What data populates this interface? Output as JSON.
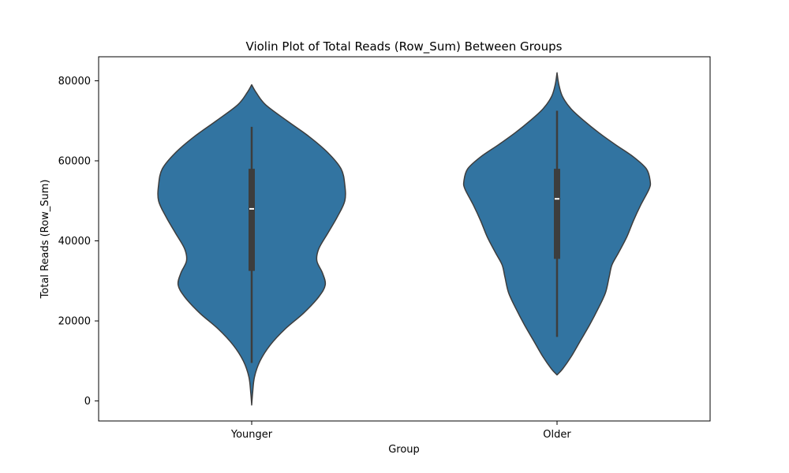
{
  "chart_data": {
    "type": "violin",
    "title": "Violin Plot of Total Reads (Row_Sum) Between Groups",
    "xlabel": "Group",
    "ylabel": "Total Reads (Row_Sum)",
    "categories": [
      "Younger",
      "Older"
    ],
    "ylim": [
      -5000,
      86000
    ],
    "yticks": [
      0,
      20000,
      40000,
      60000,
      80000
    ],
    "ytick_labels": [
      "0",
      "20000",
      "40000",
      "60000",
      "80000"
    ],
    "grid": false,
    "legend": "none",
    "colors": {
      "fill": "#3274a1",
      "edge": "#3d3d3d",
      "box": "#3d3d3d",
      "median": "#ffffff"
    },
    "violins": [
      {
        "category": "Younger",
        "box": {
          "whisker_low": 9500,
          "q1": 32500,
          "median": 48000,
          "q3": 58000,
          "whisker_high": 68500
        },
        "density": [
          [
            -1000,
            0.0
          ],
          [
            2000,
            0.01
          ],
          [
            6000,
            0.03
          ],
          [
            10000,
            0.09
          ],
          [
            14000,
            0.2
          ],
          [
            18000,
            0.36
          ],
          [
            22000,
            0.56
          ],
          [
            26000,
            0.72
          ],
          [
            29000,
            0.79
          ],
          [
            32000,
            0.76
          ],
          [
            35000,
            0.7
          ],
          [
            38000,
            0.72
          ],
          [
            42000,
            0.82
          ],
          [
            46000,
            0.92
          ],
          [
            50000,
            1.0
          ],
          [
            54000,
            1.0
          ],
          [
            58000,
            0.96
          ],
          [
            62000,
            0.82
          ],
          [
            66000,
            0.62
          ],
          [
            70000,
            0.38
          ],
          [
            74000,
            0.15
          ],
          [
            77000,
            0.05
          ],
          [
            79000,
            0.0
          ]
        ]
      },
      {
        "category": "Older",
        "box": {
          "whisker_low": 16000,
          "q1": 35500,
          "median": 50500,
          "q3": 58000,
          "whisker_high": 72500
        },
        "density": [
          [
            6500,
            0.0
          ],
          [
            8000,
            0.06
          ],
          [
            11000,
            0.15
          ],
          [
            15000,
            0.25
          ],
          [
            19000,
            0.35
          ],
          [
            23000,
            0.44
          ],
          [
            27000,
            0.52
          ],
          [
            31000,
            0.56
          ],
          [
            34000,
            0.59
          ],
          [
            37000,
            0.66
          ],
          [
            41000,
            0.75
          ],
          [
            45000,
            0.82
          ],
          [
            49000,
            0.9
          ],
          [
            53000,
            0.99
          ],
          [
            55000,
            1.0
          ],
          [
            58000,
            0.96
          ],
          [
            61000,
            0.82
          ],
          [
            64000,
            0.63
          ],
          [
            67000,
            0.45
          ],
          [
            70000,
            0.29
          ],
          [
            73000,
            0.15
          ],
          [
            76000,
            0.06
          ],
          [
            79000,
            0.02
          ],
          [
            82000,
            0.0
          ]
        ]
      }
    ]
  }
}
